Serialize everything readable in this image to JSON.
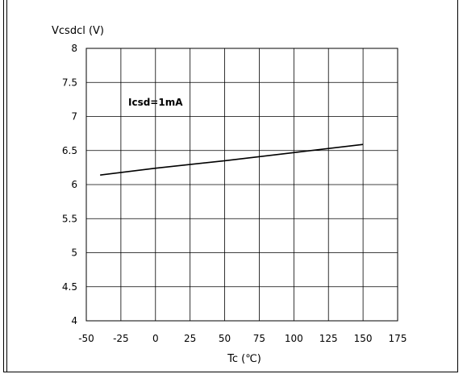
{
  "chart_data": {
    "type": "line",
    "title": "",
    "ylabel": "Vcsdcl (V)",
    "xlabel": "Tc (℃)",
    "annotation": "Icsd=1mA",
    "xlim": [
      -50,
      175
    ],
    "ylim": [
      4,
      8
    ],
    "xticks": [
      "-50",
      "-25",
      "0",
      "25",
      "50",
      "75",
      "100",
      "125",
      "150",
      "175"
    ],
    "xtick_values": [
      -50,
      -25,
      0,
      25,
      50,
      75,
      100,
      125,
      150,
      175
    ],
    "yticks": [
      "4",
      "4.5",
      "5",
      "5.5",
      "6",
      "6.5",
      "7",
      "7.5",
      "8"
    ],
    "ytick_values": [
      4,
      4.5,
      5,
      5.5,
      6,
      6.5,
      7,
      7.5,
      8
    ],
    "grid": true,
    "series": [
      {
        "x": [
          -40,
          0,
          50,
          100,
          150
        ],
        "y": [
          6.14,
          6.24,
          6.35,
          6.47,
          6.59
        ],
        "color": "#000000"
      }
    ]
  }
}
